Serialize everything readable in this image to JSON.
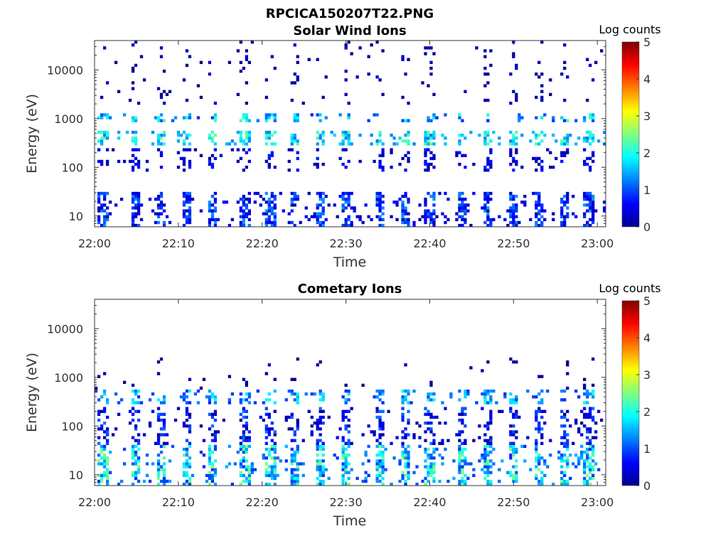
{
  "figure": {
    "title": "RPCICA150207T22.PNG"
  },
  "chart_data": [
    {
      "type": "heatmap",
      "title": "Solar Wind Ions",
      "xlabel": "Time",
      "ylabel": "Energy (eV)",
      "x_ticks": [
        "22:00",
        "22:10",
        "22:20",
        "22:30",
        "22:40",
        "22:50",
        "23:00"
      ],
      "xlim": [
        "22:00",
        "23:01"
      ],
      "y_scale": "log",
      "y_ticks": [
        "10",
        "100",
        "1000",
        "10000"
      ],
      "ylim": [
        6,
        40000
      ],
      "colorbar": {
        "label": "Log counts",
        "ticks": [
          "0",
          "1",
          "2",
          "3",
          "4",
          "5"
        ],
        "range": [
          0,
          5
        ],
        "colormap": "jet"
      },
      "grid": false,
      "description_bands": [
        {
          "energy_ev": [
            6,
            30
          ],
          "level": [
            0.2,
            1.4
          ],
          "coverage": 0.6
        },
        {
          "energy_ev": [
            80,
            250
          ],
          "level": [
            0.1,
            0.8
          ],
          "coverage": 0.3
        },
        {
          "energy_ev": [
            300,
            550
          ],
          "level": [
            1.2,
            2.4
          ],
          "coverage": 0.55
        },
        {
          "energy_ev": [
            900,
            1300
          ],
          "level": [
            0.8,
            2.2
          ],
          "coverage": 0.5
        },
        {
          "energy_ev": [
            2000,
            40000
          ],
          "level": [
            0.0,
            0.4
          ],
          "coverage": 0.08
        }
      ],
      "pulse_times": [
        "22:01",
        "22:05",
        "22:08",
        "22:11",
        "22:14",
        "22:18",
        "22:21",
        "22:24",
        "22:27",
        "22:30",
        "22:34",
        "22:37",
        "22:40",
        "22:44",
        "22:47",
        "22:50",
        "22:53",
        "22:56",
        "22:59"
      ]
    },
    {
      "type": "heatmap",
      "title": "Cometary Ions",
      "xlabel": "Time",
      "ylabel": "Energy (eV)",
      "x_ticks": [
        "22:00",
        "22:10",
        "22:20",
        "22:30",
        "22:40",
        "22:50",
        "23:00"
      ],
      "xlim": [
        "22:00",
        "23:01"
      ],
      "y_scale": "log",
      "y_ticks": [
        "10",
        "100",
        "1000",
        "10000"
      ],
      "ylim": [
        6,
        40000
      ],
      "colorbar": {
        "label": "Log counts",
        "ticks": [
          "0",
          "1",
          "2",
          "3",
          "4",
          "5"
        ],
        "range": [
          0,
          5
        ],
        "colormap": "jet"
      },
      "grid": false,
      "description_bands": [
        {
          "energy_ev": [
            6,
            40
          ],
          "level": [
            0.8,
            2.6
          ],
          "coverage": 0.6
        },
        {
          "energy_ev": [
            40,
            250
          ],
          "level": [
            0.1,
            1.2
          ],
          "coverage": 0.4
        },
        {
          "energy_ev": [
            300,
            550
          ],
          "level": [
            0.8,
            2.0
          ],
          "coverage": 0.4
        },
        {
          "energy_ev": [
            600,
            3000
          ],
          "level": [
            0.0,
            0.3
          ],
          "coverage": 0.05
        }
      ],
      "pulse_times": [
        "22:01",
        "22:05",
        "22:08",
        "22:11",
        "22:14",
        "22:18",
        "22:21",
        "22:24",
        "22:27",
        "22:30",
        "22:34",
        "22:37",
        "22:40",
        "22:44",
        "22:47",
        "22:50",
        "22:53",
        "22:56",
        "22:59"
      ]
    }
  ]
}
